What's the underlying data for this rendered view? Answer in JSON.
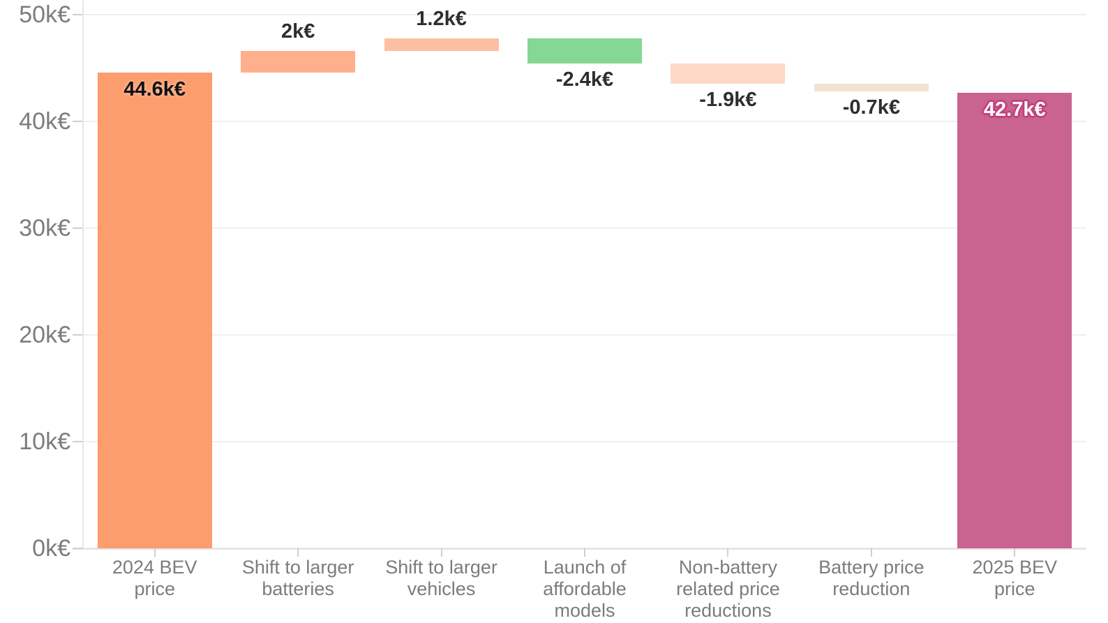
{
  "chart_data": {
    "type": "bar",
    "subtype": "waterfall",
    "title": "",
    "unit": "k€",
    "grid": true,
    "legend": "none",
    "colors": {
      "background": "#FFFFFF",
      "axis_text": "#7C7C7C",
      "value_text": "#2E2E2E",
      "grid_line": "#EFEFEF",
      "axis_line": "#E6E6E6",
      "tick": "#CFCFCF",
      "start_bar": "#FB9D6C",
      "increase_bar_1": "#FFAF8B",
      "increase_bar_2": "#FCBFA2",
      "decrease_green_bar": "#84D894",
      "decrease_peach_bar": "#FCD9C7",
      "decrease_beige_bar": "#F0E3D2",
      "end_bar": "#C9638F"
    },
    "y_axis": {
      "min": 0,
      "max": 50,
      "step": 10,
      "tick_labels": [
        "0k€",
        "10k€",
        "20k€",
        "30k€",
        "40k€",
        "50k€"
      ]
    },
    "x_axis": {
      "categories": [
        "2024 BEV price",
        "Shift to larger batteries",
        "Shift to larger vehicles",
        "Launch of affordable models",
        "Non-battery related price reductions",
        "Battery price reduction",
        "2025 BEV price"
      ]
    },
    "bars": [
      {
        "category": "2024 BEV price",
        "lines": [
          "2024 BEV",
          "price"
        ],
        "from": 0,
        "to": 44.6,
        "value": 44.6,
        "label": "44.6k€",
        "color": "#FB9D6C",
        "label_pos": "inside-top",
        "label_style": "dark-halo",
        "halo_color": "#FFB591",
        "label_color": "#111111"
      },
      {
        "category": "Shift to larger batteries",
        "lines": [
          "Shift to larger",
          "batteries"
        ],
        "from": 44.6,
        "to": 46.6,
        "value": 2,
        "label": "2k€",
        "color": "#FFAF8B",
        "label_pos": "above",
        "label_style": "dark",
        "label_color": "#2E2E2E"
      },
      {
        "category": "Shift to larger vehicles",
        "lines": [
          "Shift to larger",
          "vehicles"
        ],
        "from": 46.6,
        "to": 47.8,
        "value": 1.2,
        "label": "1.2k€",
        "color": "#FCBFA2",
        "label_pos": "above",
        "label_style": "dark",
        "label_color": "#2E2E2E"
      },
      {
        "category": "Launch of affordable models",
        "lines": [
          "Launch of",
          "affordable",
          "models"
        ],
        "from": 47.8,
        "to": 45.4,
        "value": -2.4,
        "label": "-2.4k€",
        "color": "#84D894",
        "label_pos": "below",
        "label_style": "dark",
        "label_color": "#2E2E2E"
      },
      {
        "category": "Non-battery related price reductions",
        "lines": [
          "Non-battery",
          "related price",
          "reductions"
        ],
        "from": 45.4,
        "to": 43.5,
        "value": -1.9,
        "label": "-1.9k€",
        "color": "#FCD9C7",
        "label_pos": "below",
        "label_style": "dark",
        "label_color": "#2E2E2E"
      },
      {
        "category": "Battery price reduction",
        "lines": [
          "Battery price",
          "reduction"
        ],
        "from": 43.5,
        "to": 42.8,
        "value": -0.7,
        "label": "-0.7k€",
        "color": "#F0E3D2",
        "label_pos": "below",
        "label_style": "dark",
        "label_color": "#2E2E2E"
      },
      {
        "category": "2025 BEV price",
        "lines": [
          "2025 BEV",
          "price"
        ],
        "from": 0,
        "to": 42.7,
        "value": 42.7,
        "label": "42.7k€",
        "color": "#C9638F",
        "label_pos": "inside-top",
        "label_style": "white-outline",
        "outline_color": "#C2417C",
        "label_color": "#FFFFFF"
      }
    ]
  }
}
